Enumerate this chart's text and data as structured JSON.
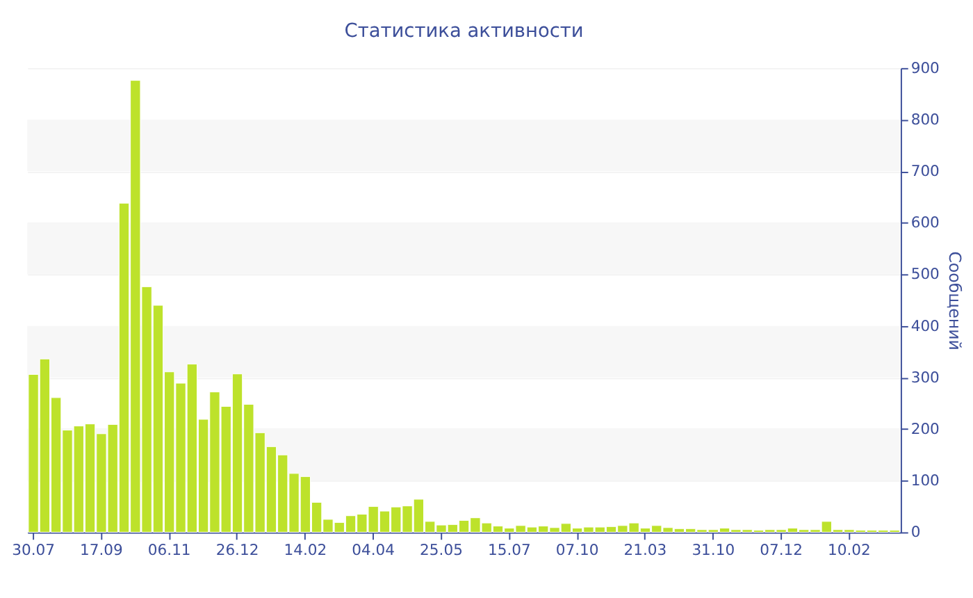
{
  "chart_data": {
    "type": "bar",
    "title": "Статистика активности",
    "ylabel": "Сообщений",
    "categories": [
      "30.07",
      null,
      null,
      null,
      null,
      null,
      "17.09",
      null,
      null,
      null,
      null,
      null,
      "06.11",
      null,
      null,
      null,
      null,
      null,
      "26.12",
      null,
      null,
      null,
      null,
      null,
      "14.02",
      null,
      null,
      null,
      null,
      null,
      "04.04",
      null,
      null,
      null,
      null,
      null,
      "25.05",
      null,
      null,
      null,
      null,
      null,
      "15.07",
      null,
      null,
      null,
      null,
      null,
      "07.10",
      null,
      null,
      null,
      null,
      null,
      "21.03",
      null,
      null,
      null,
      null,
      null,
      "31.10",
      null,
      null,
      null,
      null,
      null,
      "07.12",
      null,
      null,
      null,
      null,
      null,
      "10.02",
      null,
      null,
      null,
      null
    ],
    "values": [
      306,
      336,
      261,
      198,
      206,
      210,
      191,
      209,
      638,
      876,
      476,
      440,
      311,
      289,
      326,
      219,
      272,
      244,
      307,
      248,
      193,
      166,
      150,
      114,
      108,
      58,
      25,
      19,
      32,
      35,
      50,
      41,
      49,
      51,
      64,
      21,
      14,
      15,
      23,
      28,
      18,
      12,
      8,
      13,
      10,
      12,
      9,
      17,
      8,
      10,
      10,
      11,
      13,
      18,
      8,
      13,
      9,
      7,
      7,
      5,
      5,
      8,
      5,
      5,
      4,
      5,
      5,
      8,
      5,
      5,
      21,
      5,
      5,
      4,
      4,
      4,
      4
    ],
    "color": "#bde22b",
    "ylim": [
      0,
      900
    ],
    "yticks": [
      0,
      100,
      200,
      300,
      400,
      500,
      600,
      700,
      800,
      900
    ],
    "grid": "y"
  }
}
